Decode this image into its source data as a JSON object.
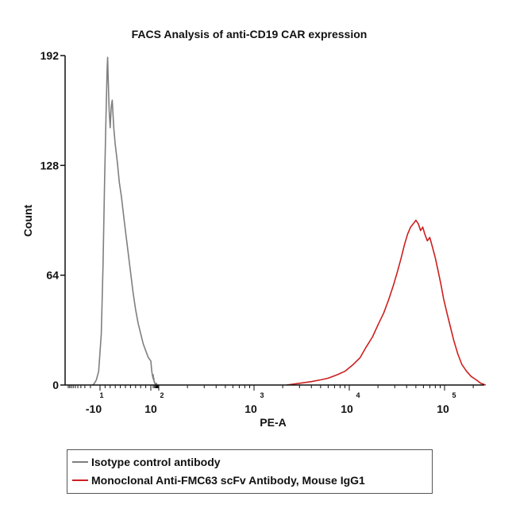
{
  "chart_data": {
    "type": "line",
    "title": "FACS Analysis of anti-CD19 CAR expression",
    "xlabel": "PE-A",
    "ylabel": "Count",
    "ylim": [
      0,
      192
    ],
    "y_ticks": [
      0,
      64,
      128,
      192
    ],
    "x_scale": "log",
    "x_ticks": [
      {
        "base": "-10",
        "exp": "1"
      },
      {
        "base": "10",
        "exp": "2"
      },
      {
        "base": "10",
        "exp": "3"
      },
      {
        "base": "10",
        "exp": "4"
      },
      {
        "base": "10",
        "exp": "5"
      }
    ],
    "grid": false,
    "legend_position": "bottom",
    "series": [
      {
        "name": "Isotype control antibody",
        "color": "#7f7f7f",
        "points": [
          [
            -17,
            0
          ],
          [
            -15,
            1
          ],
          [
            -13,
            3
          ],
          [
            -11,
            8
          ],
          [
            -9.5,
            30
          ],
          [
            -8.8,
            70
          ],
          [
            -8.2,
            120
          ],
          [
            -7.6,
            160
          ],
          [
            -7.2,
            185
          ],
          [
            -7.0,
            191
          ],
          [
            -6.8,
            180
          ],
          [
            -6.4,
            160
          ],
          [
            -6.0,
            150
          ],
          [
            -5.6,
            162
          ],
          [
            -5.2,
            166
          ],
          [
            -4.6,
            150
          ],
          [
            -4.0,
            140
          ],
          [
            -3.2,
            130
          ],
          [
            -2.4,
            118
          ],
          [
            -1.6,
            110
          ],
          [
            -0.8,
            100
          ],
          [
            0,
            90
          ],
          [
            1,
            78
          ],
          [
            2,
            66
          ],
          [
            3,
            54
          ],
          [
            4,
            44
          ],
          [
            5,
            36
          ],
          [
            6,
            30
          ],
          [
            7,
            24
          ],
          [
            8,
            20
          ],
          [
            9,
            16
          ],
          [
            10,
            14
          ],
          [
            11,
            12
          ],
          [
            12.5,
            9
          ],
          [
            14,
            7
          ],
          [
            15.5,
            6
          ],
          [
            17,
            5
          ],
          [
            18.5,
            4
          ],
          [
            20,
            6
          ],
          [
            22,
            3
          ],
          [
            24,
            4
          ],
          [
            26,
            2
          ],
          [
            28,
            2
          ],
          [
            31,
            1
          ],
          [
            35,
            1
          ],
          [
            40,
            0
          ],
          [
            50,
            1
          ],
          [
            60,
            0
          ]
        ]
      },
      {
        "name": "Monoclonal Anti-FMC63 scFv Antibody, Mouse IgG1",
        "color": "#cc1f1f",
        "points": [
          [
            2200,
            0
          ],
          [
            3000,
            1
          ],
          [
            4000,
            2
          ],
          [
            5000,
            3
          ],
          [
            6000,
            4
          ],
          [
            7500,
            6
          ],
          [
            9000,
            8
          ],
          [
            11000,
            12
          ],
          [
            13000,
            16
          ],
          [
            15000,
            22
          ],
          [
            17500,
            28
          ],
          [
            20000,
            35
          ],
          [
            23000,
            42
          ],
          [
            26000,
            50
          ],
          [
            29000,
            58
          ],
          [
            32000,
            66
          ],
          [
            35000,
            74
          ],
          [
            38000,
            82
          ],
          [
            41000,
            88
          ],
          [
            44000,
            92
          ],
          [
            47000,
            94
          ],
          [
            50000,
            96
          ],
          [
            53000,
            94
          ],
          [
            56000,
            90
          ],
          [
            59000,
            92
          ],
          [
            62000,
            88
          ],
          [
            66000,
            84
          ],
          [
            70000,
            86
          ],
          [
            75000,
            80
          ],
          [
            80000,
            74
          ],
          [
            86000,
            66
          ],
          [
            92000,
            58
          ],
          [
            98000,
            50
          ],
          [
            106000,
            42
          ],
          [
            115000,
            34
          ],
          [
            125000,
            26
          ],
          [
            138000,
            18
          ],
          [
            152000,
            12
          ],
          [
            170000,
            8
          ],
          [
            190000,
            5
          ],
          [
            215000,
            3
          ],
          [
            240000,
            1
          ],
          [
            270000,
            0
          ]
        ]
      }
    ]
  }
}
